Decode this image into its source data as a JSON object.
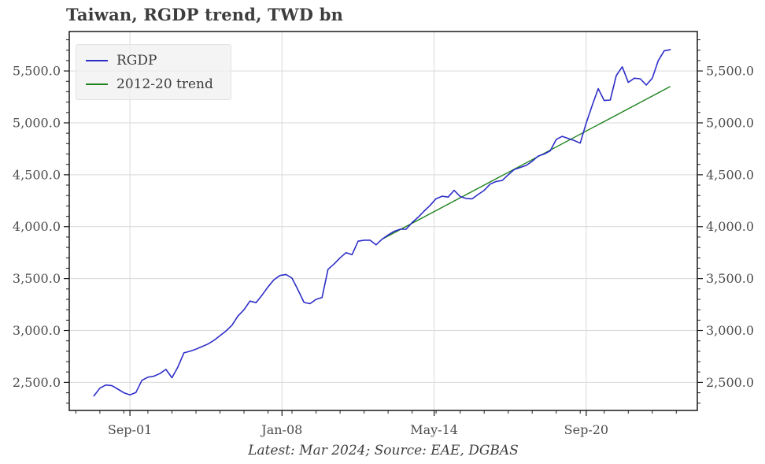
{
  "title": "Taiwan, RGDP trend, TWD bn",
  "caption": "Latest: Mar 2024; Source: EAE, DGBAS",
  "colors": {
    "rgdp": "#2d2dc8",
    "trend": "#1e821e",
    "grid": "#d9d9d9",
    "spine": "#1a1a1a",
    "tick_label": "#4d4d4d",
    "title_text": "#3d3d3d",
    "legend_bg": "#f0f0f0"
  },
  "legend": {
    "items": [
      {
        "label": "RGDP",
        "color_key": "rgdp"
      },
      {
        "label": "2012-20 trend",
        "color_key": "trend"
      }
    ],
    "position": "top-left"
  },
  "chart_data": {
    "type": "line",
    "title": "Taiwan, RGDP trend, TWD bn",
    "frequency": "quarterly",
    "x_start": "2000Q1",
    "x_end": "2024Q1",
    "x_index_note": "index 0 = 2000Q1, one step per quarter",
    "series": [
      {
        "name": "RGDP",
        "color_key": "rgdp",
        "values": [
          2370,
          2445,
          2475,
          2468,
          2435,
          2400,
          2380,
          2403,
          2520,
          2550,
          2560,
          2585,
          2625,
          2545,
          2650,
          2785,
          2800,
          2820,
          2845,
          2870,
          2905,
          2950,
          2995,
          3050,
          3140,
          3200,
          3283,
          3268,
          3340,
          3420,
          3490,
          3530,
          3540,
          3505,
          3390,
          3270,
          3258,
          3300,
          3318,
          3590,
          3640,
          3700,
          3750,
          3730,
          3860,
          3870,
          3870,
          3825,
          3880,
          3920,
          3955,
          3975,
          3975,
          4040,
          4090,
          4150,
          4205,
          4270,
          4293,
          4285,
          4350,
          4290,
          4272,
          4268,
          4310,
          4350,
          4410,
          4435,
          4445,
          4500,
          4550,
          4570,
          4590,
          4630,
          4680,
          4700,
          4730,
          4840,
          4870,
          4850,
          4830,
          4805,
          5000,
          5170,
          5330,
          5215,
          5220,
          5455,
          5540,
          5390,
          5430,
          5425,
          5365,
          5430,
          5600,
          5695,
          5705
        ]
      },
      {
        "name": "2012-20 trend",
        "color_key": "trend",
        "trend_line": {
          "start_quarter": "2012Q1",
          "start_index": 48,
          "start_value": 3880,
          "end_quarter": "2024Q1",
          "end_index": 96,
          "end_value": 5350
        }
      }
    ],
    "y_axis": {
      "lim": [
        2230,
        5880
      ],
      "major_ticks": [
        2500,
        3000,
        3500,
        4000,
        4500,
        5000,
        5500
      ],
      "tick_labels": [
        "2,500.0",
        "3,000.0",
        "3,500.0",
        "4,000.0",
        "4,500.0",
        "5,000.0",
        "5,500.0"
      ],
      "minor_step": 100,
      "labels_on_both_sides": true
    },
    "x_axis": {
      "lim": [
        -4.1,
        100.5
      ],
      "ticks": [
        {
          "index": 6,
          "label": "Sep-01"
        },
        {
          "index": 31.33,
          "label": "Jan-08"
        },
        {
          "index": 56.67,
          "label": "May-14"
        },
        {
          "index": 82,
          "label": "Sep-20"
        }
      ],
      "minor_start_index": -3,
      "minor_step": 4
    },
    "grid": true,
    "legend_position": "top-left"
  }
}
